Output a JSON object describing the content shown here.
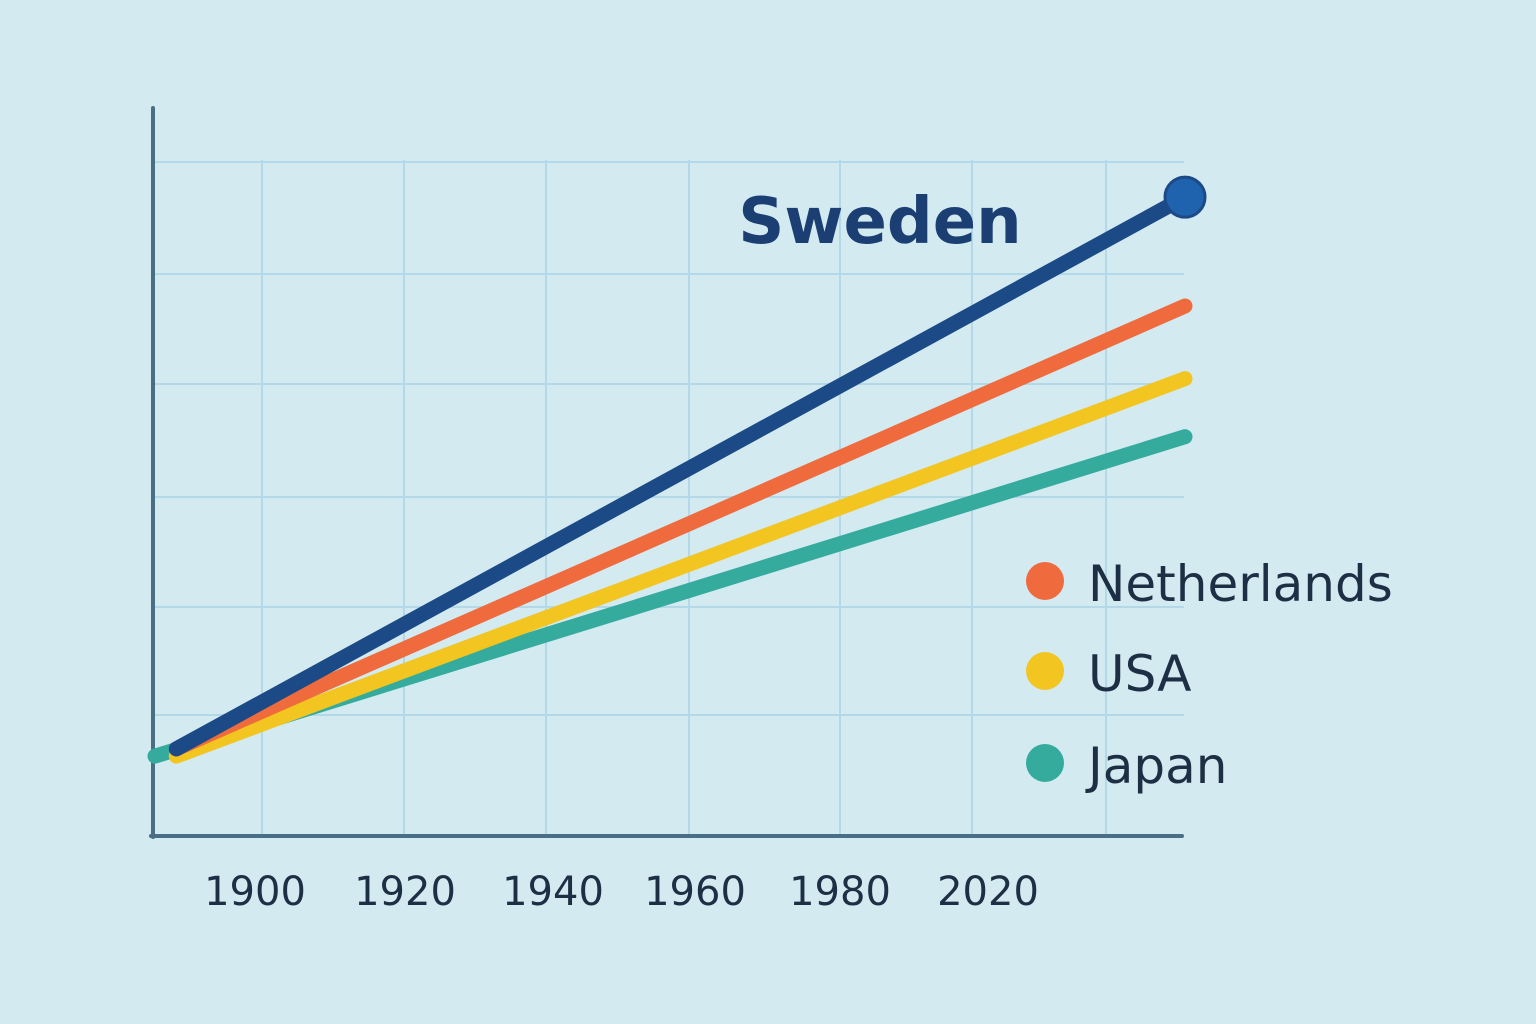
{
  "chart_data": {
    "type": "line",
    "x_ticks": [
      1900,
      1920,
      1940,
      1960,
      1980,
      2020
    ],
    "xlim": [
      1885,
      2030
    ],
    "ylim": [
      0,
      10
    ],
    "grid": true,
    "legend_position": "right",
    "series": [
      {
        "name": "Sweden",
        "color": "#1b4a87",
        "x": [
          1888,
          2030
        ],
        "y": [
          1.2,
          8.8
        ],
        "labeled": "line-end"
      },
      {
        "name": "Netherlands",
        "color": "#ef6a3c",
        "x": [
          1888,
          2030
        ],
        "y": [
          1.2,
          7.3
        ],
        "labeled": "legend"
      },
      {
        "name": "USA",
        "color": "#f2c521",
        "x": [
          1888,
          2030
        ],
        "y": [
          1.1,
          6.3
        ],
        "labeled": "legend"
      },
      {
        "name": "Japan",
        "color": "#34ab9d",
        "x": [
          1885,
          2030
        ],
        "y": [
          1.1,
          5.5
        ],
        "labeled": "legend"
      }
    ]
  }
}
